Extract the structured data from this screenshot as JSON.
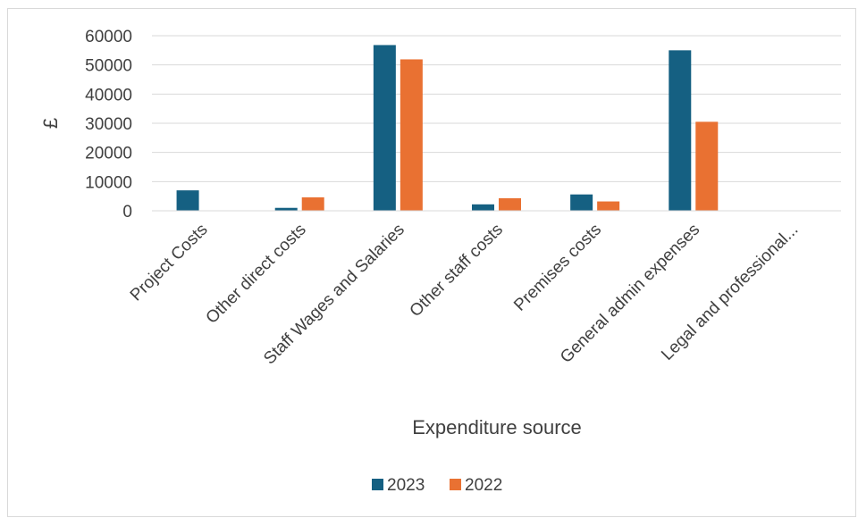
{
  "chart_data": {
    "type": "bar",
    "title": "",
    "xlabel": "Expenditure source",
    "ylabel": "£",
    "categories": [
      "Project Costs",
      "Other direct costs",
      "Staff Wages and Salaries",
      "Other staff costs",
      "Premises costs",
      "General admin expenses",
      "Legal and professional..."
    ],
    "series": [
      {
        "name": "2023",
        "color": "#156082",
        "values": [
          7000,
          1000,
          56800,
          2200,
          5600,
          55000,
          0
        ]
      },
      {
        "name": "2022",
        "color": "#E97132",
        "values": [
          0,
          4600,
          51900,
          4300,
          3200,
          30500,
          0
        ]
      }
    ],
    "ylim": [
      0,
      60000
    ],
    "yticks": [
      "0",
      "10000",
      "20000",
      "30000",
      "40000",
      "50000",
      "60000"
    ],
    "grid": true,
    "legend": "bottom"
  }
}
